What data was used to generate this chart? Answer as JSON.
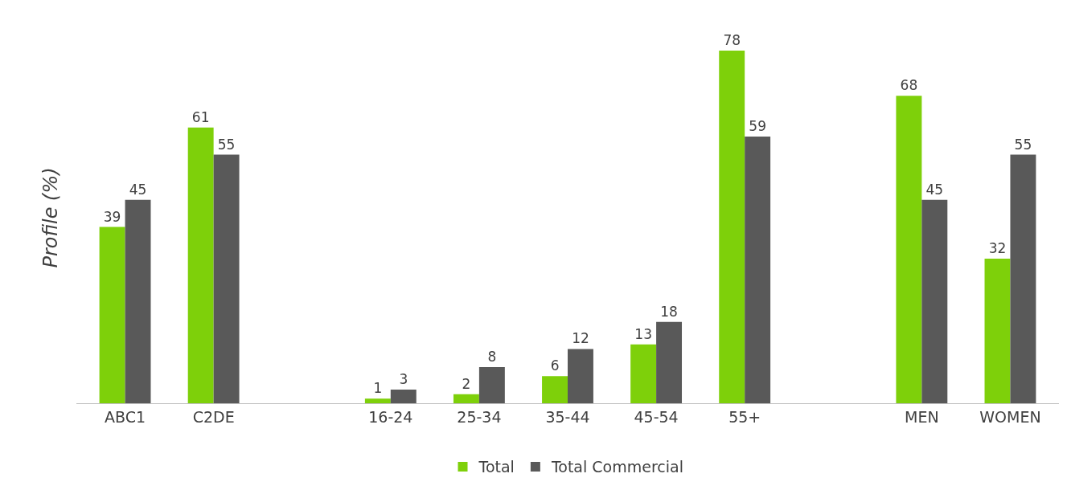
{
  "chart_data": {
    "type": "bar",
    "ylabel": "Profile (%)",
    "categories": [
      "ABC1",
      "C2DE",
      null,
      "16-24",
      "25-34",
      "35-44",
      "45-54",
      "55+",
      null,
      "MEN",
      "WOMEN"
    ],
    "series": [
      {
        "name": "Total",
        "color": "#7ed00a",
        "values": [
          39,
          61,
          null,
          1,
          2,
          6,
          13,
          78,
          null,
          68,
          32
        ]
      },
      {
        "name": "Total Commercial",
        "color": "#595959",
        "values": [
          45,
          55,
          null,
          3,
          8,
          12,
          18,
          59,
          null,
          45,
          55
        ]
      }
    ],
    "data_labels": true,
    "tick_labels": "x",
    "legend": "bottom"
  }
}
